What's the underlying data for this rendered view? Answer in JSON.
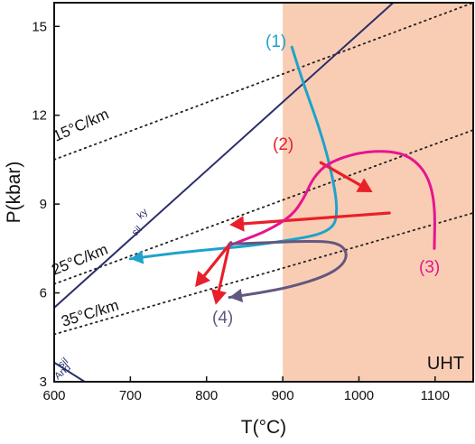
{
  "chart_data": {
    "type": "line",
    "title": "",
    "xlabel": "T(°C)",
    "ylabel": "P(kbar)",
    "xlim": [
      600,
      1150
    ],
    "ylim": [
      3,
      15.8
    ],
    "x_ticks": [
      600,
      700,
      800,
      900,
      1000,
      1100
    ],
    "y_ticks": [
      3,
      6,
      9,
      12,
      15
    ],
    "x_tick_labels": [
      "600",
      "700",
      "800",
      "900",
      "1000",
      "1100"
    ],
    "y_tick_labels": [
      "3",
      "6",
      "9",
      "12",
      "15"
    ],
    "grid": false,
    "regions": [
      {
        "label": "UHT",
        "x_min": 900,
        "x_max": 1150,
        "y_min": 3,
        "y_max": 12,
        "color": "#f9cdb4"
      }
    ],
    "geotherms": [
      {
        "label": "15°C/km",
        "points": [
          [
            600,
            10.5
          ],
          [
            1150,
            15.8
          ]
        ]
      },
      {
        "label": "25°C/km",
        "points": [
          [
            600,
            6.3
          ],
          [
            1150,
            11.5
          ]
        ]
      },
      {
        "label": "35°C/km",
        "points": [
          [
            600,
            4.6
          ],
          [
            1150,
            8.7
          ]
        ]
      }
    ],
    "phase_boundaries": [
      {
        "labels": [
          "ky",
          "sil"
        ],
        "points": [
          [
            600,
            5.5
          ],
          [
            1045,
            15.8
          ]
        ],
        "color": "#2a2f6b"
      },
      {
        "labels": [
          "sil",
          "And"
        ],
        "points": [
          [
            600,
            3.65
          ],
          [
            640,
            3.0
          ]
        ],
        "color": "#2a2f6b"
      }
    ],
    "series": [
      {
        "name": "(1)",
        "color": "#1ea3cc",
        "points": [
          [
            912,
            14.3
          ],
          [
            928,
            13.0
          ],
          [
            945,
            11.8
          ],
          [
            958,
            10.7
          ],
          [
            966,
            9.8
          ],
          [
            970,
            9.2
          ],
          [
            971,
            8.7
          ],
          [
            968,
            8.3
          ],
          [
            955,
            8.05
          ],
          [
            935,
            7.9
          ],
          [
            900,
            7.75
          ],
          [
            860,
            7.6
          ],
          [
            820,
            7.5
          ],
          [
            760,
            7.35
          ],
          [
            700,
            7.15
          ]
        ],
        "arrow": true
      },
      {
        "name": "(2)",
        "color": "#e8202a",
        "arrows": [
          {
            "from": [
              950,
              10.4
            ],
            "to": [
              1018,
              9.4
            ]
          },
          {
            "from": [
              1012,
              8.7
            ],
            "to": [
              830,
              8.3
            ],
            "tail": [
              1040,
              8.7
            ]
          },
          {
            "from": [
              830,
              7.65
            ],
            "to": [
              812,
              5.6
            ]
          },
          {
            "from": [
              832,
              7.7
            ],
            "to": [
              785,
              6.2
            ]
          }
        ]
      },
      {
        "name": "(3)",
        "color": "#e5158f",
        "points": [
          [
            1099,
            7.5
          ],
          [
            1100,
            9.0
          ],
          [
            1090,
            10.0
          ],
          [
            1068,
            10.6
          ],
          [
            1040,
            10.8
          ],
          [
            1000,
            10.75
          ],
          [
            960,
            10.4
          ],
          [
            940,
            9.9
          ],
          [
            928,
            9.2
          ],
          [
            912,
            8.6
          ],
          [
            880,
            8.1
          ],
          [
            850,
            7.8
          ],
          [
            830,
            7.6
          ]
        ],
        "arrow": false
      },
      {
        "name": "(4)",
        "color": "#64577f",
        "points": [
          [
            830,
            7.65
          ],
          [
            880,
            7.7
          ],
          [
            930,
            7.75
          ],
          [
            970,
            7.72
          ],
          [
            985,
            7.4
          ],
          [
            980,
            6.95
          ],
          [
            955,
            6.55
          ],
          [
            910,
            6.2
          ],
          [
            870,
            6.0
          ],
          [
            830,
            5.85
          ]
        ],
        "arrow": true
      }
    ]
  }
}
